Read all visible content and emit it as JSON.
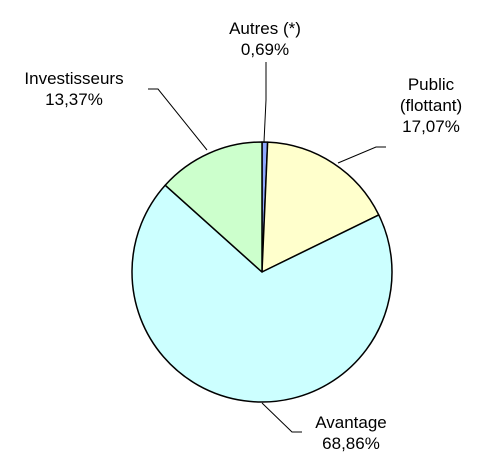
{
  "chart_data": {
    "type": "pie",
    "categories": [
      "Autres (*)",
      "Public (flottant)",
      "Avantage",
      "Investisseurs"
    ],
    "values": [
      0.69,
      17.07,
      68.86,
      13.37
    ],
    "value_labels": [
      "0,69%",
      "17,07%",
      "68,86%",
      "13,37%"
    ],
    "colors": [
      "#8fa8ff",
      "#ffffcc",
      "#ccffff",
      "#ccffcc"
    ]
  }
}
